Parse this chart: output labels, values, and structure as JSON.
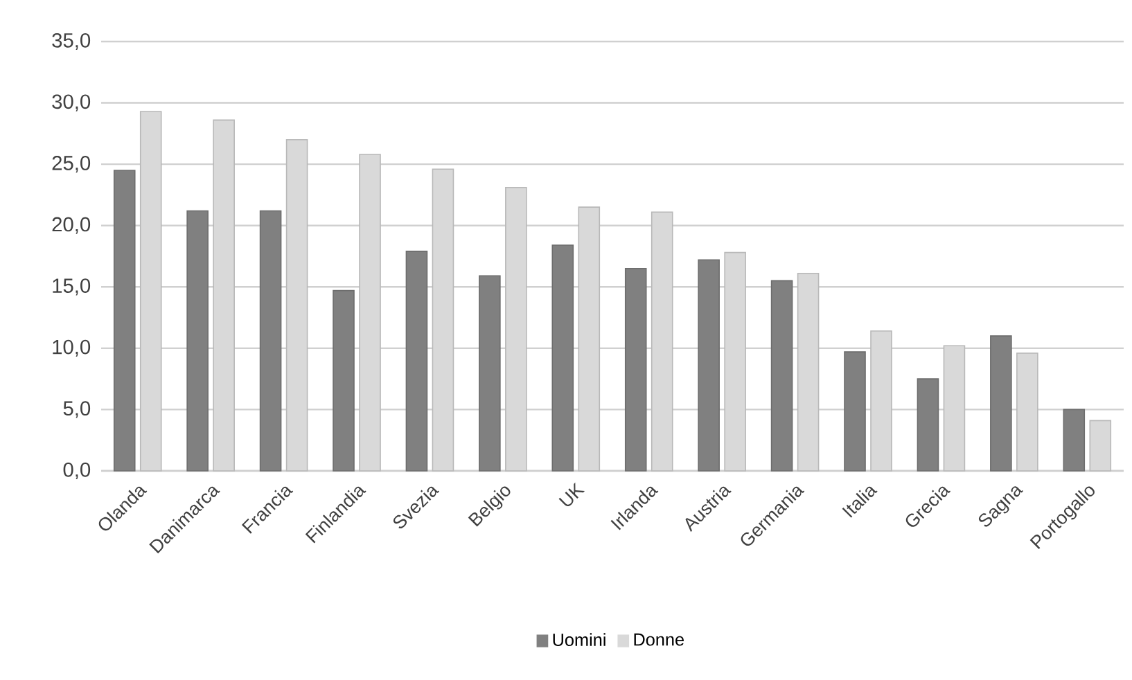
{
  "chart_data": {
    "type": "bar",
    "categories": [
      "Olanda",
      "Danimarca",
      "Francia",
      "Finlandia",
      "Svezia",
      "Belgio",
      "UK",
      "Irlanda",
      "Austria",
      "Germania",
      "Italia",
      "Grecia",
      "Sagna",
      "Portogallo"
    ],
    "series": [
      {
        "name": "Uomini",
        "color": "#808080",
        "values": [
          24.5,
          21.2,
          21.2,
          14.7,
          17.9,
          15.9,
          18.4,
          16.5,
          17.2,
          15.5,
          9.7,
          7.5,
          11.0,
          5.0
        ]
      },
      {
        "name": "Donne",
        "color": "#d9d9d9",
        "values": [
          29.3,
          28.6,
          27.0,
          25.8,
          24.6,
          23.1,
          21.5,
          21.1,
          17.8,
          16.1,
          11.4,
          10.2,
          9.6,
          4.1
        ]
      }
    ],
    "ylim": [
      0,
      35
    ],
    "yticks": [
      {
        "value": 0,
        "label": "0,0"
      },
      {
        "value": 5,
        "label": "5,0"
      },
      {
        "value": 10,
        "label": "10,0"
      },
      {
        "value": 15,
        "label": "15,0"
      },
      {
        "value": 20,
        "label": "20,0"
      },
      {
        "value": 25,
        "label": "25,0"
      },
      {
        "value": 30,
        "label": "30,0"
      },
      {
        "value": 35,
        "label": "35,0"
      }
    ],
    "grid": "y",
    "legend": "bottom"
  }
}
